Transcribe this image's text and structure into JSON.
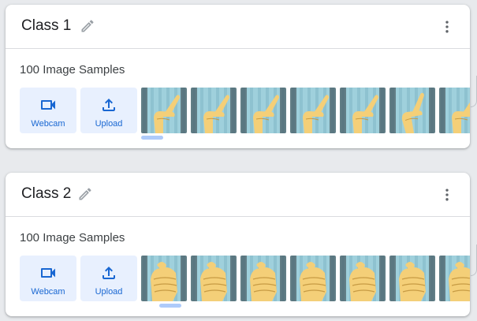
{
  "classes": [
    {
      "name": "Class 1",
      "samples_label": "100 Image Samples",
      "webcam_label": "Webcam",
      "upload_label": "Upload",
      "gesture": "pointing-finger"
    },
    {
      "name": "Class 2",
      "samples_label": "100 Image Samples",
      "webcam_label": "Webcam",
      "upload_label": "Upload",
      "gesture": "fist"
    }
  ],
  "icons": {
    "edit": "pencil-icon",
    "more": "more-vert-icon",
    "webcam": "videocam-icon",
    "upload": "upload-icon"
  },
  "colors": {
    "accent": "#1967d2",
    "button_bg": "#e8f0fe",
    "curtain": "#9fd0dc",
    "skin": "#f4cf78"
  }
}
